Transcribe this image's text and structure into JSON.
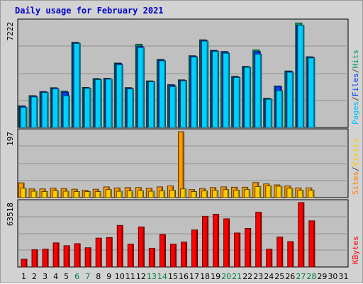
{
  "title": "Daily usage for February 2021",
  "chart_data": {
    "type": "bar",
    "x": [
      1,
      2,
      3,
      4,
      5,
      6,
      7,
      8,
      9,
      10,
      11,
      12,
      13,
      14,
      15,
      16,
      17,
      18,
      19,
      20,
      21,
      22,
      23,
      24,
      25,
      26,
      27,
      28,
      29,
      30,
      31
    ],
    "weekend_days": [
      6,
      7,
      13,
      14,
      20,
      21,
      27,
      28
    ],
    "panels": [
      {
        "name": "hits-files-pages",
        "ymax": 7222,
        "ymax_label": "7222",
        "legend": [
          "Pages",
          "/",
          "Files",
          "/",
          "Hits"
        ],
        "legend_colors": [
          "#00c0ff",
          "#404040",
          "#0040ff",
          "#404040",
          "#00a060"
        ],
        "series": [
          {
            "name": "Hits",
            "color": "#00a060",
            "values": [
              1480,
              2180,
              2460,
              2720,
              2490,
              5830,
              2740,
              3350,
              3370,
              4410,
              2730,
              5700,
              3190,
              4660,
              2930,
              3260,
              4910,
              6000,
              5280,
              5200,
              3500,
              4180,
              5310,
              2000,
              2840,
              3870,
              7150,
              4840,
              0,
              0,
              0
            ]
          },
          {
            "name": "Files",
            "color": "#0040ff",
            "values": [
              1450,
              2150,
              2430,
              2700,
              2420,
              5800,
              2710,
              3320,
              3340,
              4380,
              2700,
              5560,
              3160,
              4620,
              2900,
              3230,
              4880,
              5970,
              5250,
              5170,
              3470,
              4150,
              5200,
              1970,
              2810,
              3840,
              7000,
              4820,
              0,
              0,
              0
            ]
          },
          {
            "name": "Pages",
            "color": "#00d0ff",
            "values": [
              1380,
              2090,
              2390,
              2650,
              2170,
              5750,
              2680,
              3280,
              3310,
              4290,
              2640,
              5470,
              3130,
              4560,
              2790,
              3200,
              4830,
              5910,
              5200,
              5080,
              3420,
              4120,
              5020,
              1930,
              2520,
              3780,
              7000,
              4760,
              0,
              0,
              0
            ]
          }
        ]
      },
      {
        "name": "visits-sites",
        "ymax": 197,
        "ymax_label": "197",
        "legend": [
          "Sites",
          "/",
          "Visits"
        ],
        "legend_colors": [
          "#ff8000",
          "#404040",
          "#ffcc00"
        ],
        "series": [
          {
            "name": "Visits",
            "color": "#ff9900",
            "values": [
              44,
              26,
              26,
              28,
              27,
              25,
              22,
              25,
              32,
              29,
              30,
              30,
              28,
              32,
              35,
              197,
              24,
              27,
              30,
              32,
              31,
              31,
              45,
              41,
              38,
              35,
              29,
              29,
              0,
              0,
              0
            ]
          },
          {
            "name": "Sites",
            "color": "#ffcc00",
            "values": [
              28,
              19,
              18,
              21,
              19,
              18,
              18,
              18,
              24,
              19,
              20,
              21,
              19,
              20,
              22,
              26,
              18,
              20,
              22,
              24,
              22,
              24,
              33,
              35,
              34,
              28,
              22,
              22,
              0,
              0,
              0
            ]
          }
        ]
      },
      {
        "name": "kbytes",
        "ymax": 63518,
        "ymax_label": "63518",
        "legend": [
          "KBytes"
        ],
        "legend_colors": [
          "#ff0000"
        ],
        "series": [
          {
            "name": "KBytes",
            "color": "#ff0000",
            "values": [
              7600,
              17000,
              17500,
              23800,
              21000,
              23000,
              19000,
              28500,
              29000,
              41000,
              22500,
              39500,
              18500,
              32000,
              22500,
              24500,
              36500,
              50000,
              52000,
              47500,
              33500,
              38000,
              54000,
              17500,
              29500,
              25000,
              63518,
              45500,
              0,
              0,
              0
            ]
          }
        ]
      }
    ],
    "day_label_colors": {
      "weekday": "#000000",
      "weekend": "#008040"
    }
  }
}
